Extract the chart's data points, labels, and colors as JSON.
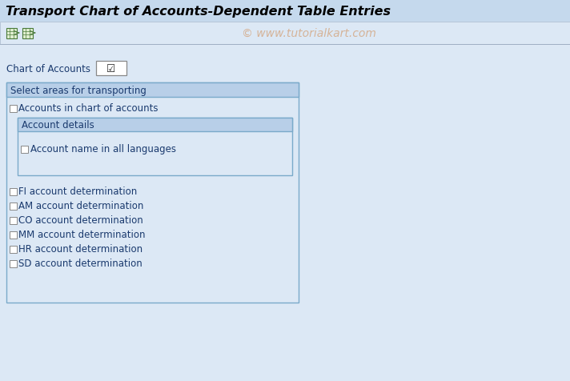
{
  "title": "Transport Chart of Accounts-Dependent Table Entries",
  "watermark": "© www.tutorialkart.com",
  "bg_color": "#dce8f5",
  "title_bar_color": "#c5d9ed",
  "toolbar_bar_color": "#dce8f5",
  "chart_of_accounts_label": "Chart of Accounts",
  "section_title": "Select areas for transporting",
  "section_title_bg": "#b8cfe8",
  "section_bg": "#dce8f5",
  "section_border": "#7aaaca",
  "inner_box_bg": "#dce8f5",
  "inner_box_border": "#7aaaca",
  "inner_header_bg": "#b8cfe8",
  "checkbox_items_main": [
    "Accounts in chart of accounts"
  ],
  "inner_header": "Account details",
  "inner_checkbox_items": [
    "Account name in all languages"
  ],
  "checkbox_items_below": [
    "FI account determination",
    "AM account determination",
    "CO account determination",
    "MM account determination",
    "HR account determination",
    "SD account determination"
  ],
  "text_color": "#1a3a6e",
  "title_text_color": "#000000",
  "watermark_color": "#d4aa88",
  "title_font_size": 11.5,
  "label_font_size": 8.5,
  "section_font_size": 8.5,
  "figwidth": 7.12,
  "figheight": 4.77,
  "dpi": 100
}
